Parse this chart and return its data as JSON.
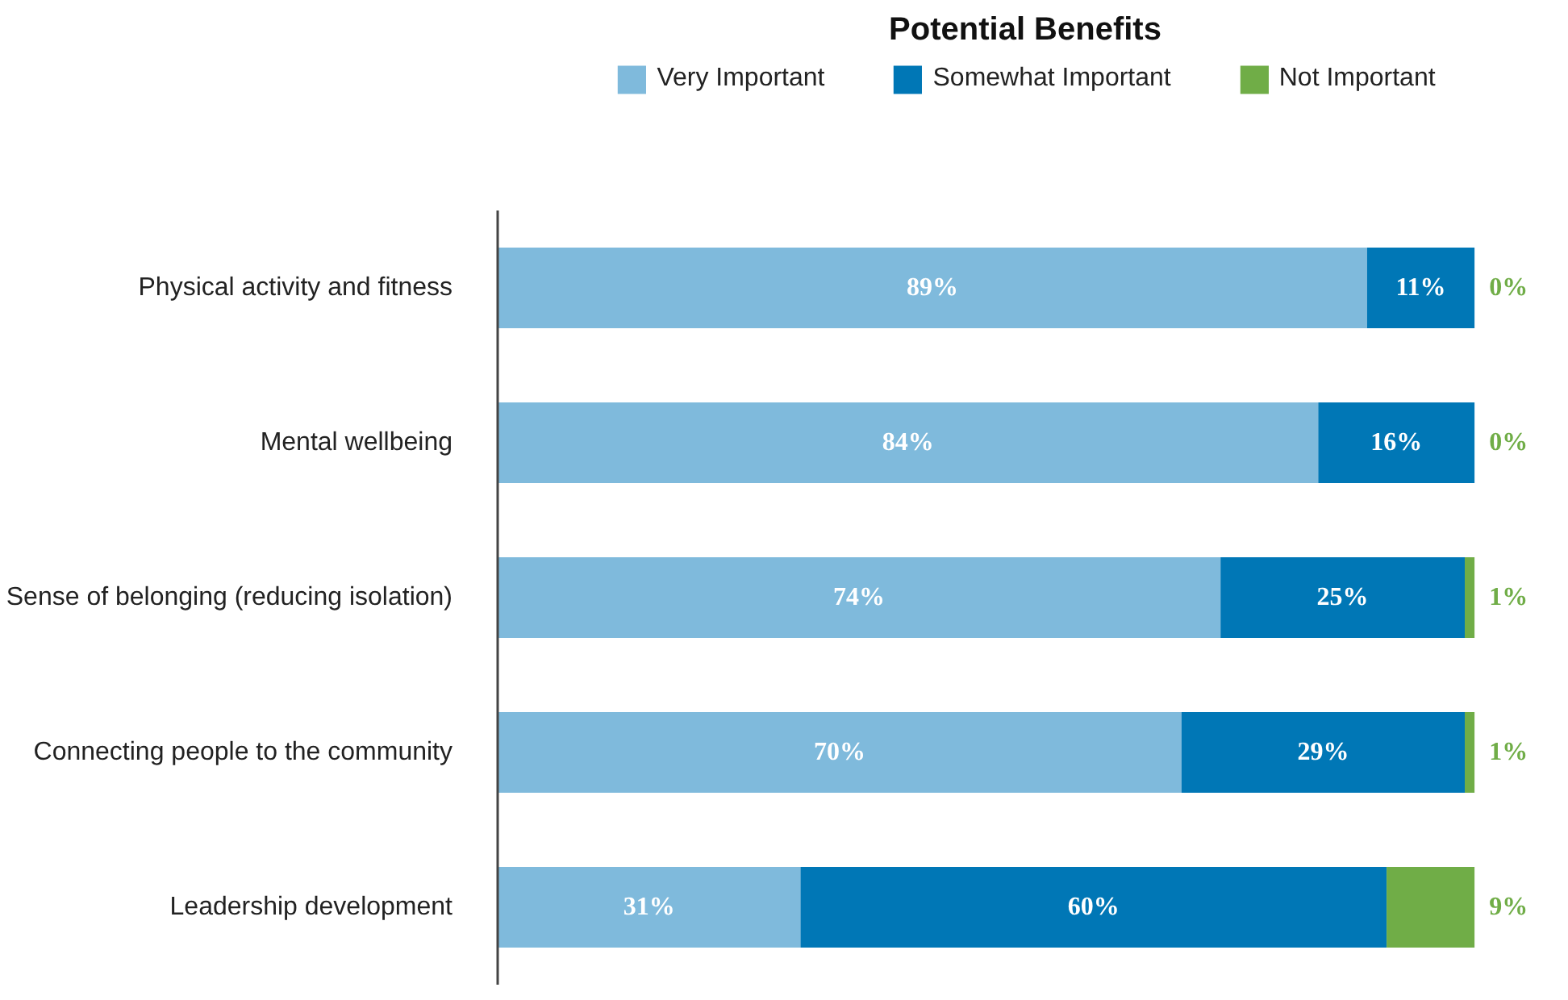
{
  "chart_data": {
    "type": "bar",
    "orientation": "horizontal",
    "stacked": true,
    "title": "Potential Benefits",
    "categories": [
      "Physical activity and fitness",
      "Mental wellbeing",
      "Sense of belonging (reducing isolation)",
      "Connecting people to the community",
      "Leadership development"
    ],
    "series": [
      {
        "name": "Very Important",
        "color": "#7fbadc",
        "values": [
          89,
          84,
          74,
          70,
          31
        ],
        "value_labels": [
          "89%",
          "84%",
          "74%",
          "70%",
          "31%"
        ]
      },
      {
        "name": "Somewhat Important",
        "color": "#0077b6",
        "values": [
          11,
          16,
          25,
          29,
          60
        ],
        "value_labels": [
          "11%",
          "16%",
          "25%",
          "29%",
          "60%"
        ]
      },
      {
        "name": "Not Important",
        "color": "#70ad47",
        "values": [
          0,
          0,
          1,
          1,
          9
        ],
        "value_labels": [
          "0%",
          "0%",
          "1%",
          "1%",
          "9%"
        ]
      }
    ],
    "legend": "top",
    "grid": false
  }
}
